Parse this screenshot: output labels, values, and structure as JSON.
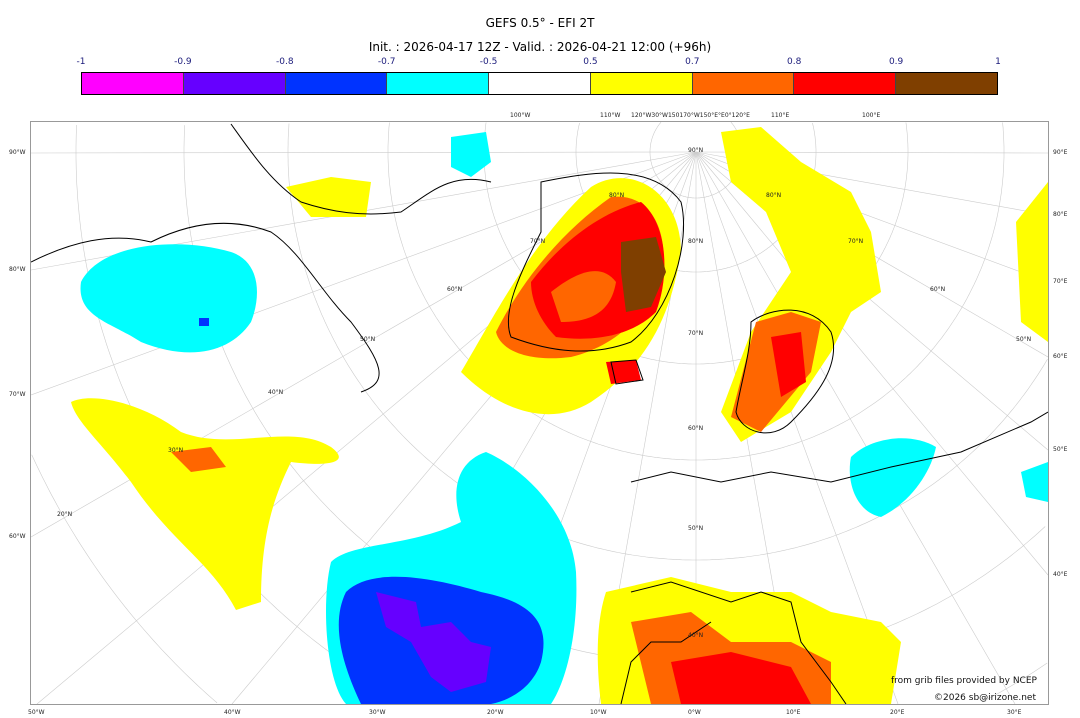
{
  "title": "GEFS 0.5° - EFI 2T",
  "subtitle": "Init. : 2026-04-17 12Z - Valid. : 2026-04-21 12:00 (+96h)",
  "colorbar": {
    "ticks": [
      "-1",
      "-0.9",
      "-0.8",
      "-0.7",
      "-0.5",
      "0.5",
      "0.7",
      "0.8",
      "0.9",
      "1"
    ],
    "colors": [
      "#ff00ff",
      "#6600ff",
      "#0033ff",
      "#00ffff",
      "#ffffff",
      "#ffff00",
      "#ff6600",
      "#ff0000",
      "#7f3f00"
    ]
  },
  "axes": {
    "bottom": [
      "50°W",
      "40°W",
      "30°W",
      "20°W",
      "10°W",
      "0°W",
      "10°E",
      "20°E",
      "30°E"
    ],
    "left": [
      "90°W",
      "80°W",
      "70°W",
      "60°W"
    ],
    "right": [
      "90°E",
      "80°E",
      "70°E",
      "60°E",
      "50°E",
      "40°E"
    ],
    "top": [
      "100°W",
      "110°W",
      "120°W30°W150170°W150°E°E0°120°E",
      "110°E",
      "100°E"
    ],
    "lat_labels": [
      "90°N",
      "80°N",
      "80°N",
      "70°N",
      "70°N",
      "60°N",
      "60°N",
      "50°N",
      "50°N",
      "40°N",
      "30°N",
      "20°N",
      "80°N",
      "70°N",
      "60°N",
      "50°N",
      "40°N"
    ]
  },
  "credits": {
    "source": "from grib files provided by NCEP",
    "copyright": "©2026 sb@irizone.net"
  }
}
